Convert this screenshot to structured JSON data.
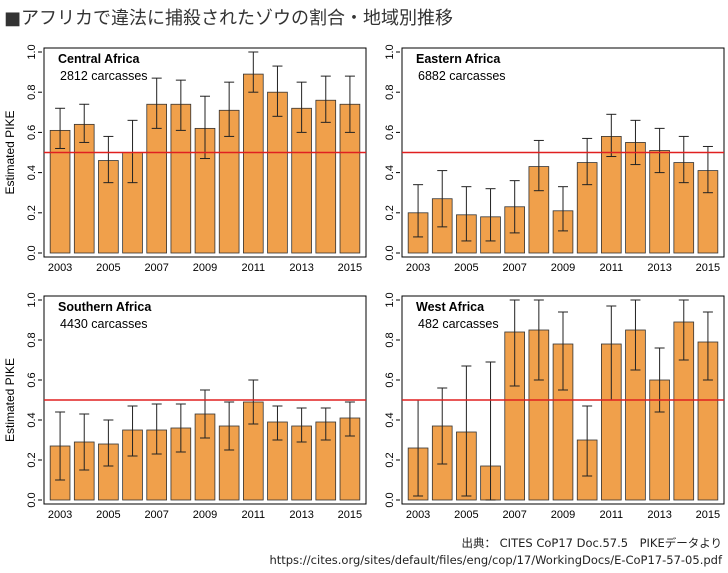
{
  "title": "■アフリカで違法に捕殺されたゾウの割合・地域別推移",
  "source": {
    "line1": "出典： CITES CoP17 Doc.57.5　PIKEデータより",
    "line2": "https://cites.org/sites/default/files/eng/cop/17/WorkingDocs/E-CoP17-57-05.pdf"
  },
  "colors": {
    "bar": "#f0a04b",
    "bar_stroke": "#333333",
    "threshold": "#e02020"
  },
  "chart_data": [
    {
      "type": "bar",
      "title": "Central Africa",
      "subtitle": "2812 carcasses",
      "ylabel": "Estimated PIKE",
      "xlabel": "",
      "ylim": [
        0,
        1
      ],
      "yticks": [
        0.0,
        0.2,
        0.4,
        0.6,
        0.8,
        1.0
      ],
      "x": [
        2003,
        2004,
        2005,
        2006,
        2007,
        2008,
        2009,
        2010,
        2011,
        2012,
        2013,
        2014,
        2015
      ],
      "xticks": [
        2003,
        2005,
        2007,
        2009,
        2011,
        2013,
        2015
      ],
      "values": [
        0.61,
        0.64,
        0.46,
        0.5,
        0.74,
        0.74,
        0.62,
        0.71,
        0.89,
        0.8,
        0.72,
        0.76,
        0.74
      ],
      "error_low": [
        0.52,
        0.55,
        0.35,
        0.35,
        0.62,
        0.61,
        0.47,
        0.58,
        0.8,
        0.68,
        0.6,
        0.65,
        0.6
      ],
      "error_high": [
        0.72,
        0.74,
        0.58,
        0.66,
        0.87,
        0.86,
        0.78,
        0.85,
        1.0,
        0.93,
        0.85,
        0.88,
        0.88
      ],
      "threshold": 0.5
    },
    {
      "type": "bar",
      "title": "Eastern Africa",
      "subtitle": "6882 carcasses",
      "ylabel": "",
      "xlabel": "",
      "ylim": [
        0,
        1
      ],
      "yticks": [
        0.0,
        0.2,
        0.4,
        0.6,
        0.8,
        1.0
      ],
      "x": [
        2003,
        2004,
        2005,
        2006,
        2007,
        2008,
        2009,
        2010,
        2011,
        2012,
        2013,
        2014,
        2015
      ],
      "xticks": [
        2003,
        2005,
        2007,
        2009,
        2011,
        2013,
        2015
      ],
      "values": [
        0.2,
        0.27,
        0.19,
        0.18,
        0.23,
        0.43,
        0.21,
        0.45,
        0.58,
        0.55,
        0.51,
        0.45,
        0.41
      ],
      "error_low": [
        0.08,
        0.13,
        0.06,
        0.06,
        0.1,
        0.31,
        0.11,
        0.34,
        0.48,
        0.44,
        0.4,
        0.35,
        0.3
      ],
      "error_high": [
        0.34,
        0.41,
        0.33,
        0.32,
        0.36,
        0.56,
        0.33,
        0.57,
        0.69,
        0.66,
        0.62,
        0.58,
        0.53
      ],
      "threshold": 0.5
    },
    {
      "type": "bar",
      "title": "Southern Africa",
      "subtitle": "4430 carcasses",
      "ylabel": "Estimated PIKE",
      "xlabel": "",
      "ylim": [
        0,
        1
      ],
      "yticks": [
        0.0,
        0.2,
        0.4,
        0.6,
        0.8,
        1.0
      ],
      "x": [
        2003,
        2004,
        2005,
        2006,
        2007,
        2008,
        2009,
        2010,
        2011,
        2012,
        2013,
        2014,
        2015
      ],
      "xticks": [
        2003,
        2005,
        2007,
        2009,
        2011,
        2013,
        2015
      ],
      "values": [
        0.27,
        0.29,
        0.28,
        0.35,
        0.35,
        0.36,
        0.43,
        0.37,
        0.49,
        0.39,
        0.37,
        0.39,
        0.41
      ],
      "error_low": [
        0.1,
        0.15,
        0.17,
        0.22,
        0.23,
        0.24,
        0.31,
        0.25,
        0.38,
        0.3,
        0.29,
        0.3,
        0.32
      ],
      "error_high": [
        0.44,
        0.43,
        0.4,
        0.47,
        0.48,
        0.48,
        0.55,
        0.49,
        0.6,
        0.47,
        0.46,
        0.46,
        0.49
      ],
      "threshold": 0.5
    },
    {
      "type": "bar",
      "title": "West Africa",
      "subtitle": "482 carcasses",
      "ylabel": "",
      "xlabel": "",
      "ylim": [
        0,
        1
      ],
      "yticks": [
        0.0,
        0.2,
        0.4,
        0.6,
        0.8,
        1.0
      ],
      "x": [
        2003,
        2004,
        2005,
        2006,
        2007,
        2008,
        2009,
        2010,
        2011,
        2012,
        2013,
        2014,
        2015
      ],
      "xticks": [
        2003,
        2005,
        2007,
        2009,
        2011,
        2013,
        2015
      ],
      "values": [
        0.26,
        0.37,
        0.34,
        0.17,
        0.84,
        0.85,
        0.78,
        0.3,
        0.78,
        0.85,
        0.6,
        0.89,
        0.79
      ],
      "error_low": [
        0.02,
        0.18,
        0.02,
        0.0,
        0.57,
        0.6,
        0.55,
        0.12,
        0.5,
        0.65,
        0.44,
        0.7,
        0.6
      ],
      "error_high": [
        0.5,
        0.56,
        0.67,
        0.69,
        1.0,
        1.0,
        0.94,
        0.47,
        0.97,
        1.0,
        0.76,
        1.0,
        0.94
      ],
      "threshold": 0.5
    }
  ]
}
